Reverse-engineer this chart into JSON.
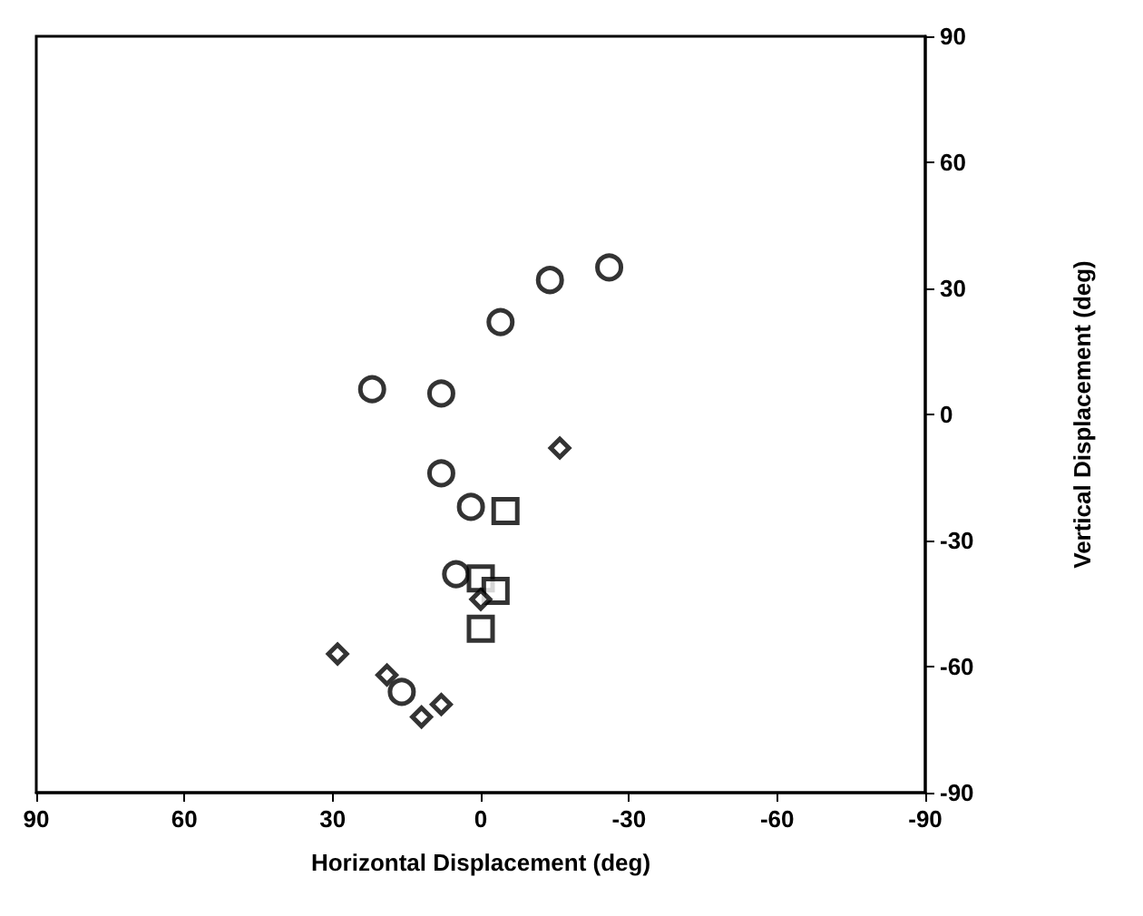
{
  "chart_data": {
    "type": "scatter",
    "xlabel": "Horizontal Displacement (deg)",
    "ylabel": "Vertical Displacement (deg)",
    "xlim": [
      90,
      -90
    ],
    "xticks": [
      90,
      60,
      30,
      0,
      -30,
      -60,
      -90
    ],
    "ylim": [
      -90,
      90
    ],
    "yticks": [
      -90,
      -60,
      -30,
      0,
      30,
      60,
      90
    ],
    "grid": false,
    "series": [
      {
        "color": "#000000",
        "marker": "circle",
        "x": [
          -26,
          -14,
          -4,
          22,
          8,
          8,
          2,
          5,
          16
        ],
        "values": [
          35,
          32,
          22,
          6,
          5,
          -14,
          -22,
          -38,
          -66
        ]
      },
      {
        "color": "#000000",
        "marker": "square",
        "x": [
          -5,
          0,
          -3,
          0
        ],
        "values": [
          -23,
          -39,
          -42,
          -51
        ]
      },
      {
        "color": "#000000",
        "marker": "diamond",
        "x": [
          -16,
          0,
          29,
          19,
          8,
          12
        ],
        "values": [
          -8,
          -44,
          -57,
          -62,
          -69,
          -72
        ]
      }
    ]
  }
}
